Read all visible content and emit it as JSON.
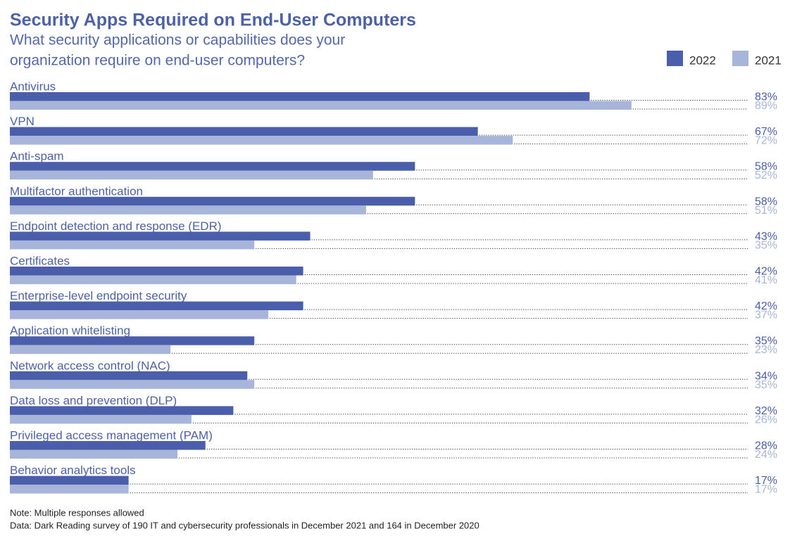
{
  "chart_data": {
    "type": "bar",
    "orientation": "horizontal",
    "title": "Security Apps Required on End-User Computers",
    "subtitle": [
      "What security applications or capabilities does your",
      "organization require on end-user computers?"
    ],
    "categories": [
      "Antivirus",
      "VPN",
      "Anti-spam",
      "Multifactor authentication",
      "Endpoint detection and response (EDR)",
      "Certificates",
      "Enterprise-level endpoint security",
      "Application whitelisting",
      "Network access control (NAC)",
      "Data loss and prevention (DLP)",
      "Privileged access management (PAM)",
      "Behavior analytics tools"
    ],
    "series": [
      {
        "name": "2022",
        "color": "#4a5eab",
        "values": [
          83,
          67,
          58,
          58,
          43,
          42,
          42,
          35,
          34,
          32,
          28,
          17
        ],
        "value_labels": [
          "83%",
          "67%",
          "58%",
          "58%",
          "43%",
          "42%",
          "42%",
          "35%",
          "34%",
          "32%",
          "28%",
          "17%"
        ]
      },
      {
        "name": "2021",
        "color": "#a7b5da",
        "values": [
          89,
          72,
          52,
          51,
          35,
          41,
          37,
          23,
          35,
          26,
          24,
          17
        ],
        "value_labels": [
          "89%",
          "72%",
          "52%",
          "51%",
          "35%",
          "41%",
          "37%",
          "23%",
          "35%",
          "26%",
          "24%",
          "17%"
        ]
      }
    ],
    "legend_position": "top-right",
    "notes": [
      "Note: Multiple responses allowed",
      "Data: Dark Reading survey of 190 IT and cybersecurity professionals in December 2021 and 164 in December 2020"
    ]
  }
}
